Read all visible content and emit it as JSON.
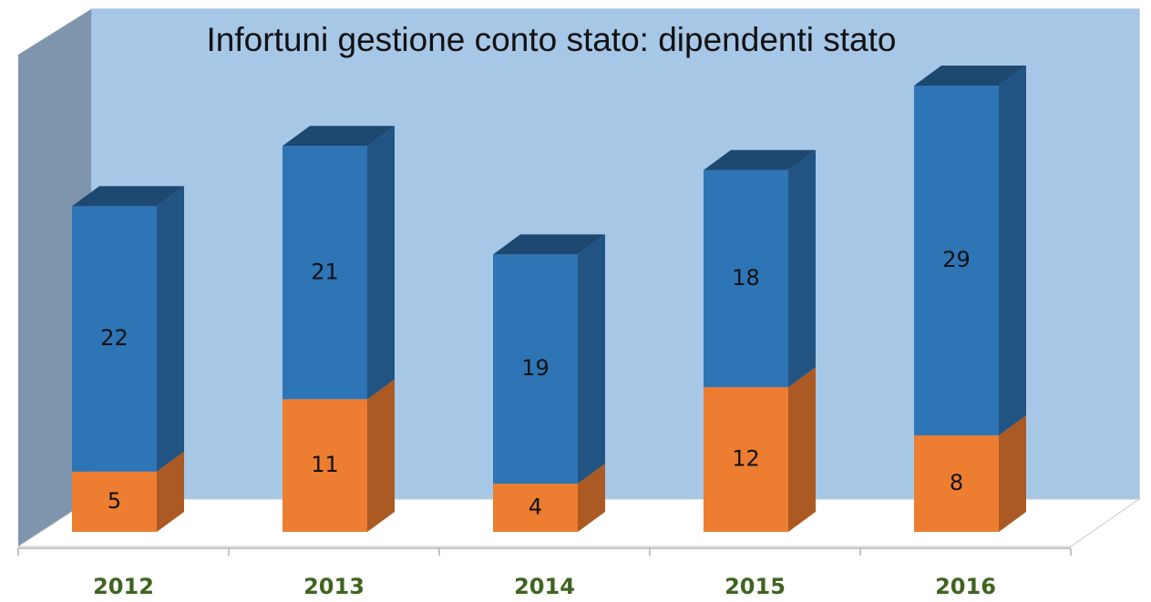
{
  "chart_data": {
    "type": "bar3d_stacked",
    "title": "Infortuni gestione conto stato: dipendenti stato",
    "categories": [
      "2012",
      "2013",
      "2014",
      "2015",
      "2016"
    ],
    "series": [
      {
        "color": "#ed7d31",
        "values": [
          5,
          11,
          4,
          12,
          8
        ]
      },
      {
        "color": "#2e75b6",
        "values": [
          22,
          21,
          19,
          18,
          29
        ]
      }
    ]
  }
}
